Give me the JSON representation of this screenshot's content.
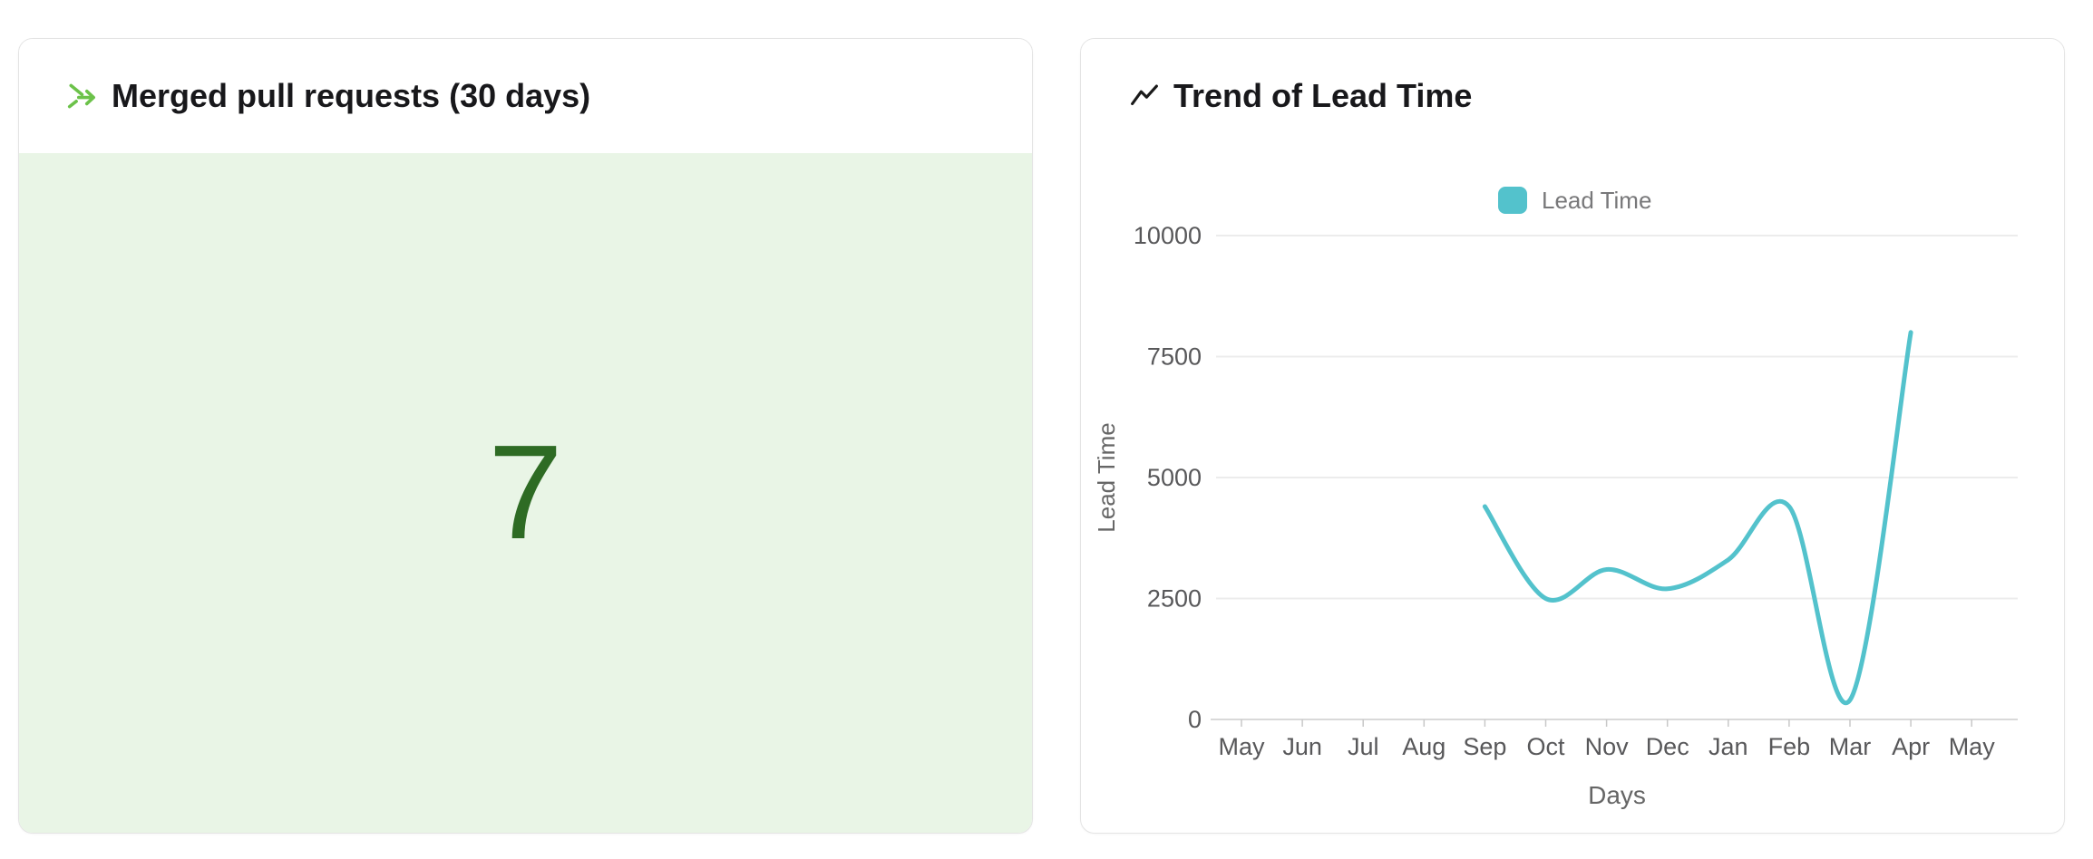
{
  "page": {
    "background": "#ffffff"
  },
  "cards": {
    "merged_pull_requests": {
      "title": "Merged pull requests (30 days)",
      "value": "7",
      "icon": "merge-arrows-icon",
      "icon_color": "#6cc24a",
      "value_color": "#2e6b24",
      "panel_background": "#e9f5e6"
    },
    "lead_time_trend": {
      "title": "Trend of Lead Time",
      "icon": "trend-line-icon",
      "icon_color": "#1a1a1a"
    }
  },
  "chart_data": {
    "type": "line",
    "title": "Trend of Lead Time",
    "xlabel": "Days",
    "ylabel": "Lead Time",
    "legend": {
      "label": "Lead Time",
      "position": "top",
      "swatch_color": "#53c2cc"
    },
    "categories": [
      "May",
      "Jun",
      "Jul",
      "Aug",
      "Sep",
      "Oct",
      "Nov",
      "Dec",
      "Jan",
      "Feb",
      "Mar",
      "Apr",
      "May"
    ],
    "series": [
      {
        "name": "Lead Time",
        "color": "#53c2cc",
        "line_width": 5,
        "points": [
          {
            "x": "Sep",
            "y": 4400
          },
          {
            "x": "Oct",
            "y": 2500
          },
          {
            "x": "Nov",
            "y": 3100
          },
          {
            "x": "Dec",
            "y": 2700
          },
          {
            "x": "Jan",
            "y": 3300
          },
          {
            "x": "Feb",
            "y": 4400
          },
          {
            "x": "Mar",
            "y": 400
          },
          {
            "x": "Apr",
            "y": 8000
          }
        ]
      }
    ],
    "y_axis": {
      "min": 0,
      "max": 10000,
      "ticks": [
        0,
        2500,
        5000,
        7500,
        10000
      ]
    },
    "grid": true,
    "line_style": "smooth",
    "colors": {
      "gridline": "#ececec",
      "axis_line": "#d9d9d9",
      "tick_mark": "#c8c8c8",
      "tick_label": "#58585a",
      "axis_title": "#666666",
      "legend_text": "#78787a"
    }
  }
}
